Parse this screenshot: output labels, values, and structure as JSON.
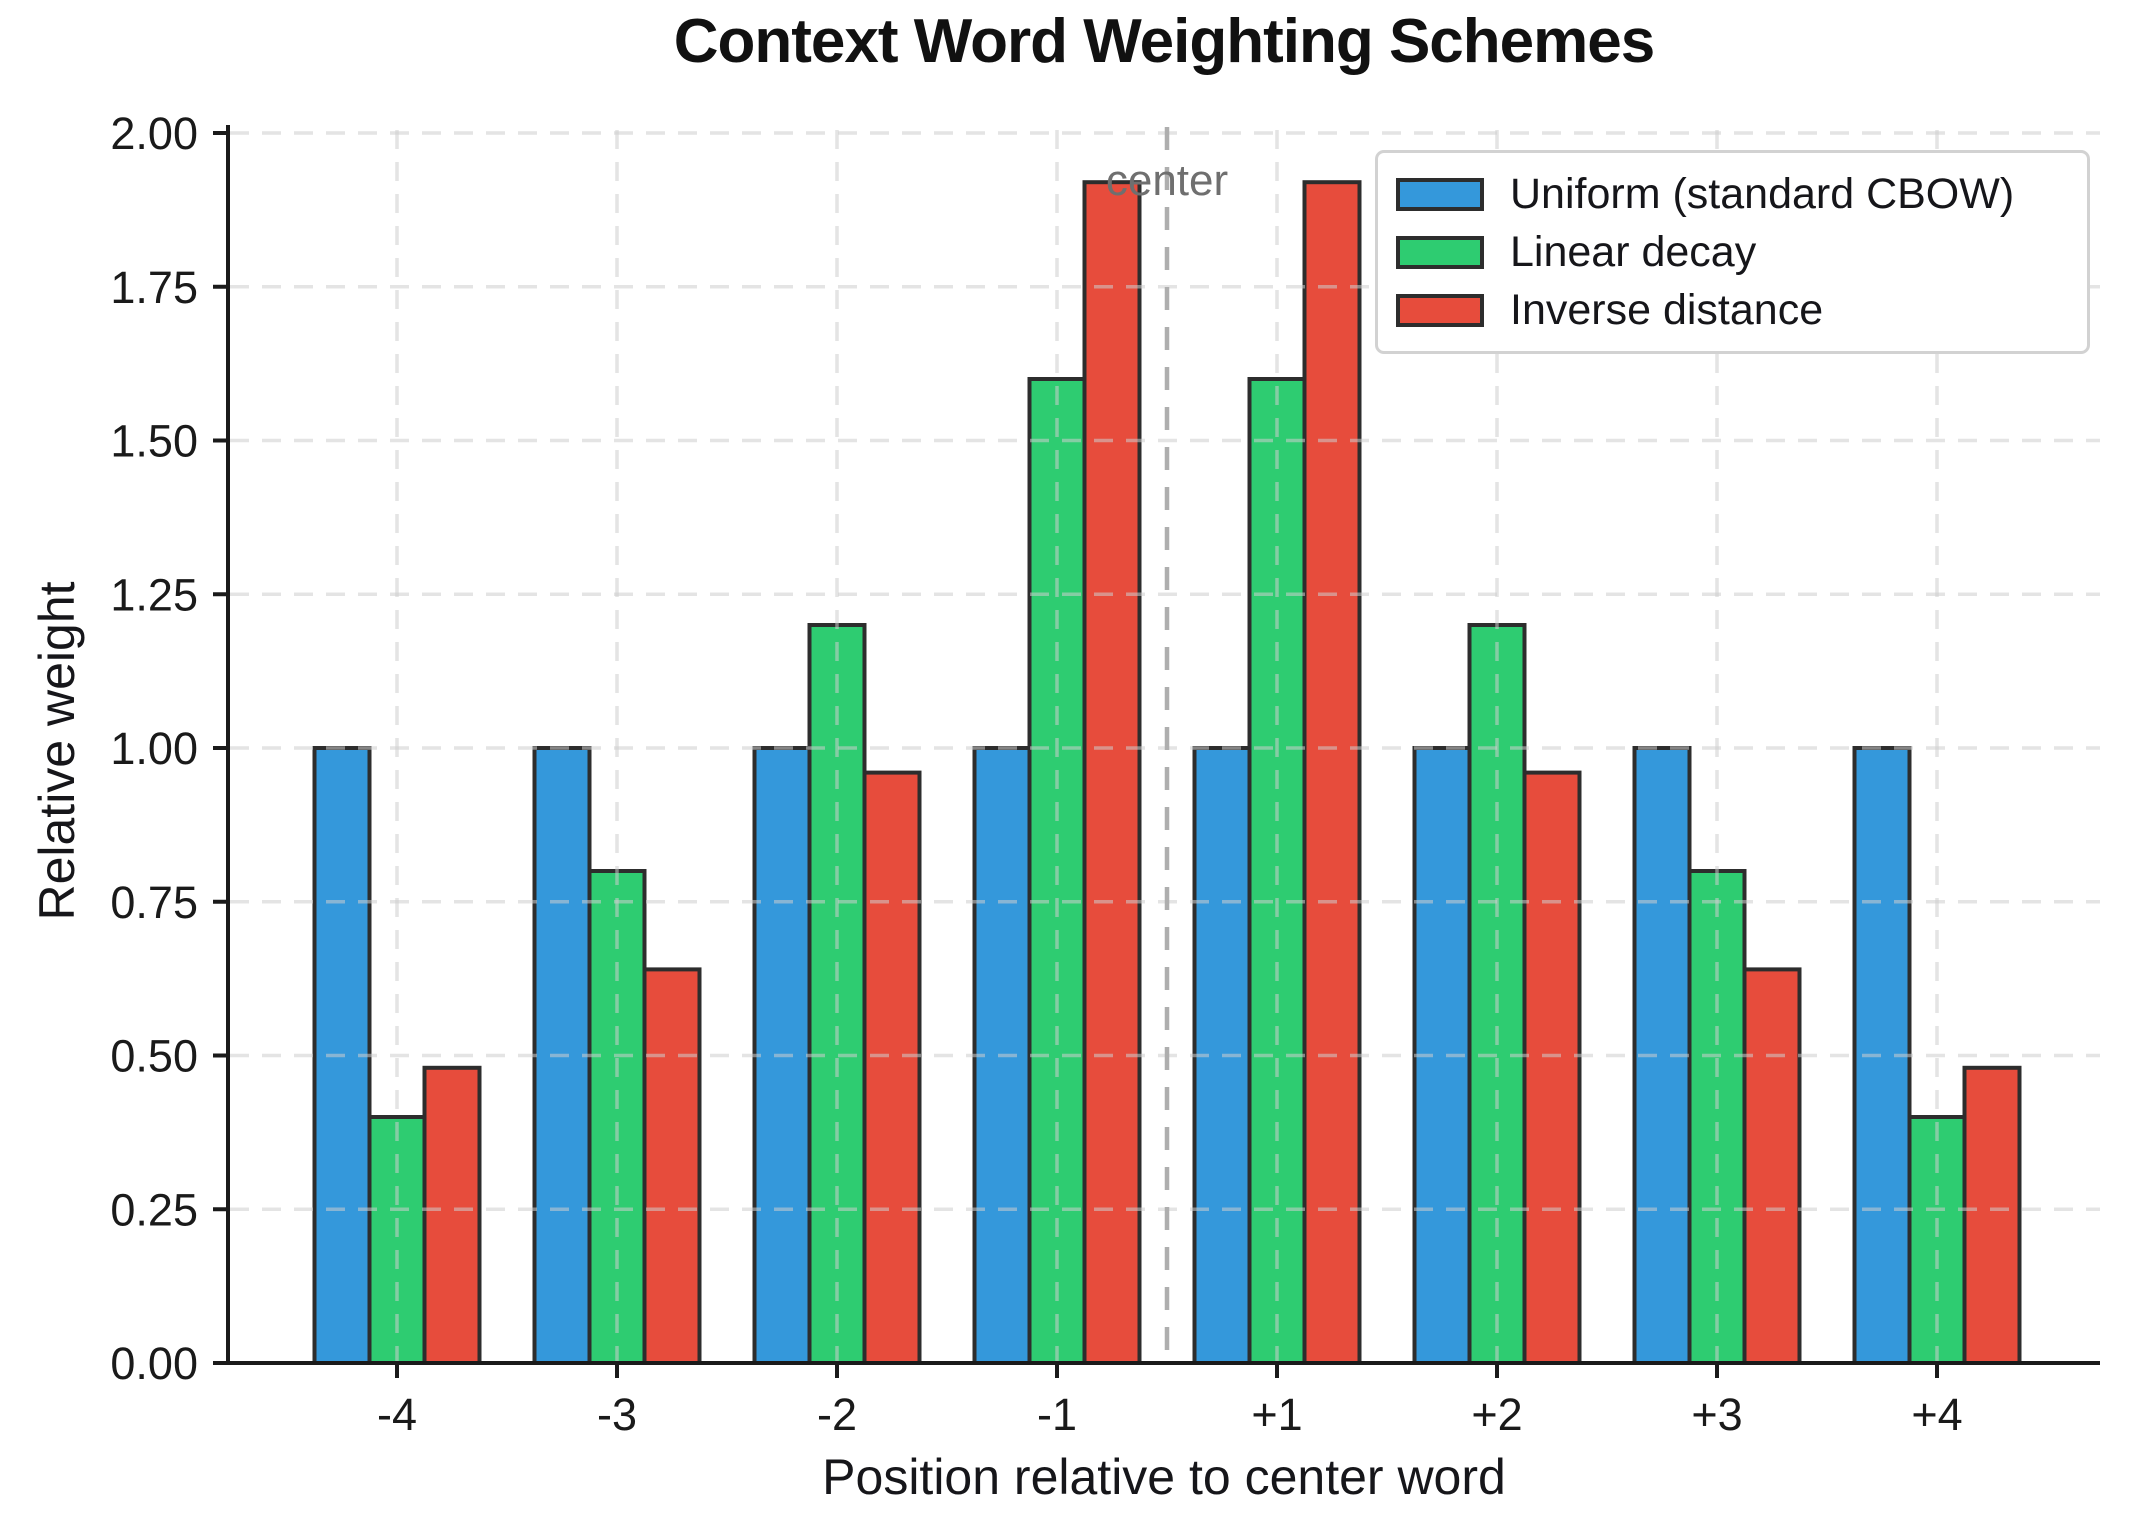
{
  "chart_data": {
    "type": "bar",
    "title": "Context Word Weighting Schemes",
    "xlabel": "Position relative to center word",
    "ylabel": "Relative weight",
    "categories": [
      "-4",
      "-3",
      "-2",
      "-1",
      "+1",
      "+2",
      "+3",
      "+4"
    ],
    "series": [
      {
        "name": "Uniform (standard CBOW)",
        "color": "#3498db",
        "values": [
          1.0,
          1.0,
          1.0,
          1.0,
          1.0,
          1.0,
          1.0,
          1.0
        ]
      },
      {
        "name": "Linear decay",
        "color": "#2ecc71",
        "values": [
          0.4,
          0.8,
          1.2,
          1.6,
          1.6,
          1.2,
          0.8,
          0.4
        ]
      },
      {
        "name": "Inverse distance",
        "color": "#e74c3c",
        "values": [
          0.48,
          0.64,
          0.96,
          1.92,
          1.92,
          0.96,
          0.64,
          0.48
        ]
      }
    ],
    "ylim": [
      0.0,
      2.0
    ],
    "ytick_labels": [
      "0.00",
      "0.25",
      "0.50",
      "0.75",
      "1.00",
      "1.25",
      "1.50",
      "1.75",
      "2.00"
    ],
    "grid": true,
    "grid_style": "dashed",
    "legend_position": "upper right",
    "annotation": {
      "label": "center",
      "between": [
        "-1",
        "+1"
      ]
    },
    "colors": {
      "bar_edge": "#2d2d2d",
      "grid": "#cdcdcd",
      "center_line": "#aeaeae",
      "center_text": "#6f6f6f",
      "axis": "#1a1a1a",
      "legend_border": "#d2d2d2"
    }
  }
}
